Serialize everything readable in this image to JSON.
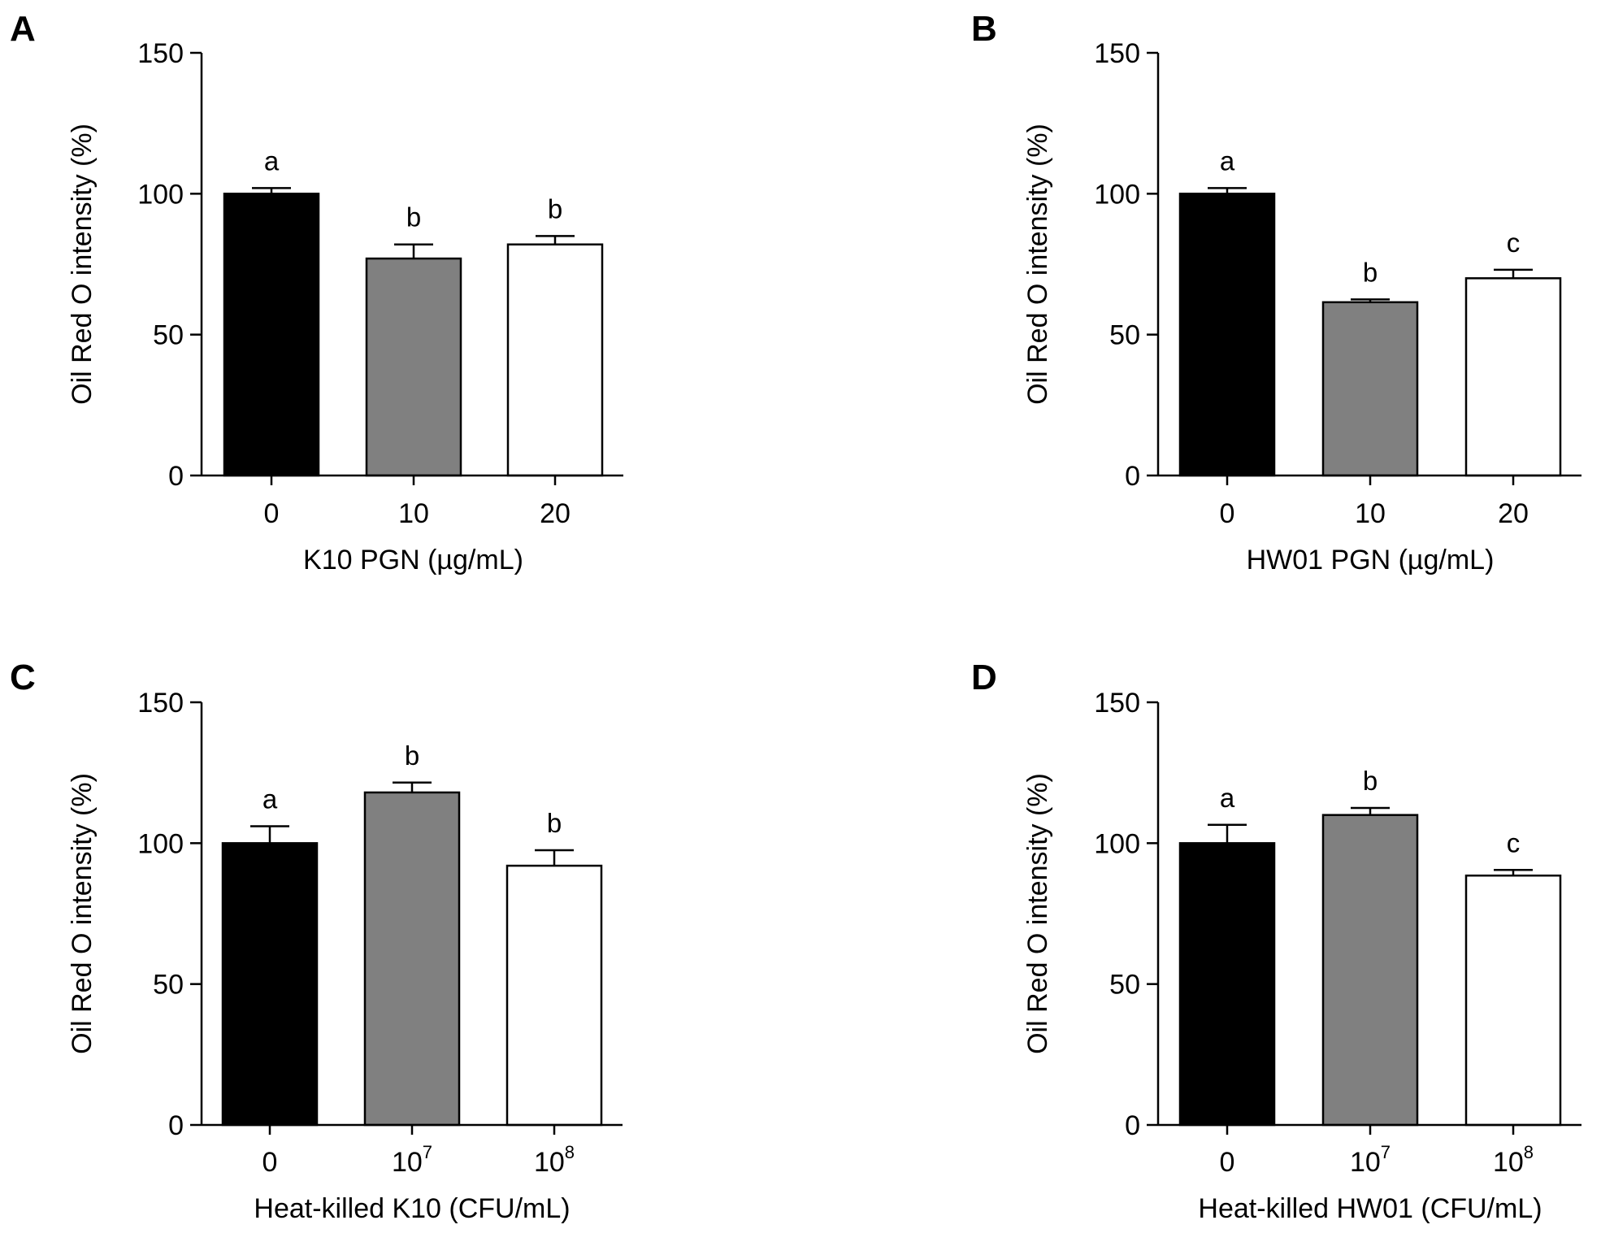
{
  "chart_data": [
    {
      "type": "bar",
      "panel": "A",
      "categories": [
        "0",
        "10",
        "20"
      ],
      "values": [
        100,
        77,
        82
      ],
      "errors": [
        2,
        5,
        3
      ],
      "significance": [
        "a",
        "b",
        "b"
      ],
      "bar_colors": [
        "#000000",
        "#808080",
        "#ffffff"
      ],
      "xlabel": "K10 PGN (µg/mL)",
      "ylabel": "Oil Red O intensity (%)",
      "ylim": [
        0,
        150
      ],
      "yticks": [
        "0",
        "50",
        "100",
        "150"
      ],
      "grid": false
    },
    {
      "type": "bar",
      "panel": "B",
      "categories": [
        "0",
        "10",
        "20"
      ],
      "values": [
        100,
        61.5,
        70
      ],
      "errors": [
        2,
        1,
        3
      ],
      "significance": [
        "a",
        "b",
        "c"
      ],
      "bar_colors": [
        "#000000",
        "#808080",
        "#ffffff"
      ],
      "xlabel": "HW01 PGN (µg/mL)",
      "ylabel": "Oil Red O intensity (%)",
      "ylim": [
        0,
        150
      ],
      "yticks": [
        "0",
        "50",
        "100",
        "150"
      ],
      "grid": false
    },
    {
      "type": "bar",
      "panel": "C",
      "categories": [
        "0",
        "10",
        "10"
      ],
      "category_exponents": [
        "",
        "7",
        "8"
      ],
      "values": [
        100,
        118,
        92
      ],
      "errors": [
        6,
        3.5,
        5.5
      ],
      "significance": [
        "a",
        "b",
        "b"
      ],
      "bar_colors": [
        "#000000",
        "#808080",
        "#ffffff"
      ],
      "xlabel": "Heat-killed K10 (CFU/mL)",
      "ylabel": "Oil Red O intensity (%)",
      "ylim": [
        0,
        150
      ],
      "yticks": [
        "0",
        "50",
        "100",
        "150"
      ],
      "grid": false
    },
    {
      "type": "bar",
      "panel": "D",
      "categories": [
        "0",
        "10",
        "10"
      ],
      "category_exponents": [
        "",
        "7",
        "8"
      ],
      "values": [
        100,
        110,
        88.5
      ],
      "errors": [
        6.5,
        2.5,
        2
      ],
      "significance": [
        "a",
        "b",
        "c"
      ],
      "bar_colors": [
        "#000000",
        "#808080",
        "#ffffff"
      ],
      "xlabel": "Heat-killed HW01 (CFU/mL)",
      "ylabel": "Oil Red O intensity (%)",
      "ylim": [
        0,
        150
      ],
      "yticks": [
        "0",
        "50",
        "100",
        "150"
      ],
      "grid": false
    }
  ]
}
